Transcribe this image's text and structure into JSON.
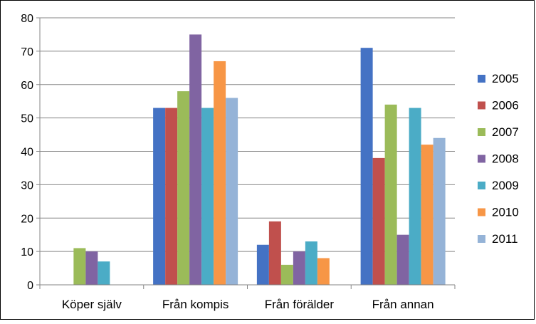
{
  "chart_data": {
    "type": "bar",
    "title": "",
    "xlabel": "",
    "ylabel": "",
    "categories": [
      "Köper själv",
      "Från kompis",
      "Från förälder",
      "Från annan"
    ],
    "ylim": [
      0,
      80
    ],
    "yticks": [
      0,
      10,
      20,
      30,
      40,
      50,
      60,
      70,
      80
    ],
    "grid": true,
    "legend_position": "right",
    "series": [
      {
        "name": "2005",
        "color": "#4472C4",
        "values": [
          0,
          53,
          12,
          71
        ]
      },
      {
        "name": "2006",
        "color": "#C0504D",
        "values": [
          0,
          53,
          19,
          38
        ]
      },
      {
        "name": "2007",
        "color": "#9BBB59",
        "values": [
          11,
          58,
          6,
          54
        ]
      },
      {
        "name": "2008",
        "color": "#8064A2",
        "values": [
          10,
          75,
          10,
          15
        ]
      },
      {
        "name": "2009",
        "color": "#4BACC6",
        "values": [
          7,
          53,
          13,
          53
        ]
      },
      {
        "name": "2010",
        "color": "#F79646",
        "values": [
          0,
          67,
          8,
          42
        ]
      },
      {
        "name": "2011",
        "color": "#95B3D7",
        "values": [
          0,
          56,
          0,
          44
        ]
      }
    ]
  }
}
